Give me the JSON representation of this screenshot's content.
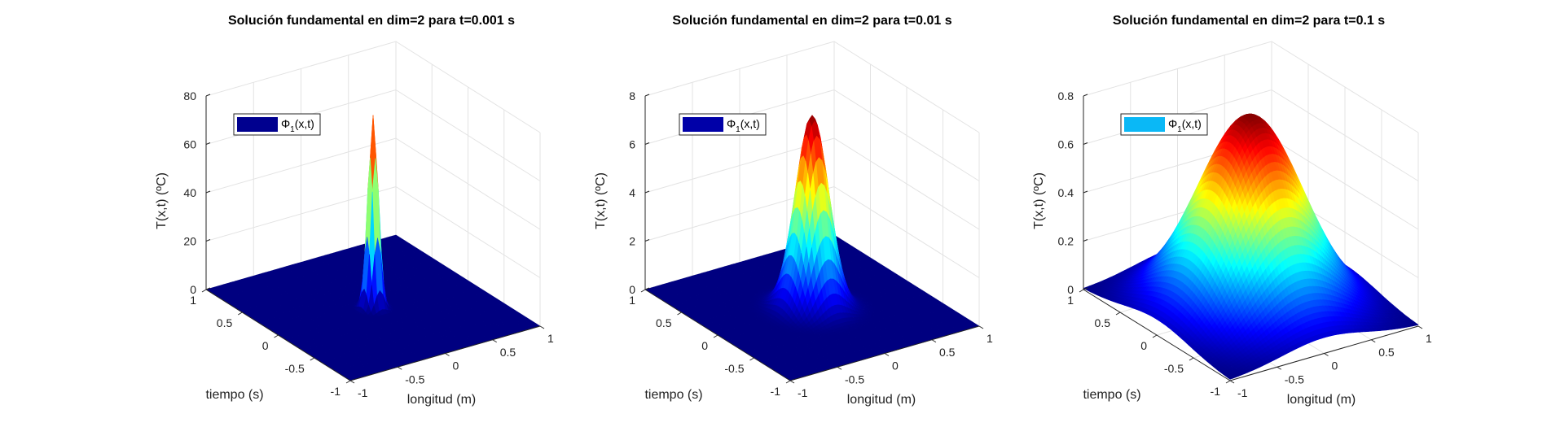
{
  "chart_data": [
    {
      "type": "surface",
      "title": "Solución fundamental en dim=2 para t=0.001 s",
      "xlabel": "longitud (m)",
      "ylabel": "tiempo (s)",
      "zlabel": "T(x,t) (ºC)",
      "xlim": [
        -1,
        1
      ],
      "ylim": [
        -1,
        1
      ],
      "zlim": [
        0,
        80
      ],
      "x_ticks": [
        "-1",
        "-0.5",
        "0",
        "0.5",
        "1"
      ],
      "y_ticks": [
        "-1",
        "-0.5",
        "0",
        "0.5",
        "1"
      ],
      "z_ticks": [
        "0",
        "20",
        "40",
        "60",
        "80"
      ],
      "t": 0.001,
      "peak": 79.6,
      "legend": {
        "label_main": "Φ",
        "label_sub": "1",
        "label_tail": "(x,t)",
        "swatch_color": "#00008f",
        "position": "top-left"
      },
      "colormap": "jet",
      "grid": true
    },
    {
      "type": "surface",
      "title": "Solución fundamental en dim=2 para t=0.01 s",
      "xlabel": "longitud (m)",
      "ylabel": "tiempo (s)",
      "zlabel": "T(x,t) (ºC)",
      "xlim": [
        -1,
        1
      ],
      "ylim": [
        -1,
        1
      ],
      "zlim": [
        0,
        8
      ],
      "x_ticks": [
        "-1",
        "-0.5",
        "0",
        "0.5",
        "1"
      ],
      "y_ticks": [
        "-1",
        "-0.5",
        "0",
        "0.5",
        "1"
      ],
      "z_ticks": [
        "0",
        "2",
        "4",
        "6",
        "8"
      ],
      "t": 0.01,
      "peak": 7.96,
      "legend": {
        "label_main": "Φ",
        "label_sub": "1",
        "label_tail": "(x,t)",
        "swatch_color": "#0000a8",
        "position": "top-left"
      },
      "colormap": "jet",
      "grid": true
    },
    {
      "type": "surface",
      "title": "Solución fundamental en dim=2 para t=0.1 s",
      "xlabel": "longitud (m)",
      "ylabel": "tiempo (s)",
      "zlabel": "T(x,t) (ºC)",
      "xlim": [
        -1,
        1
      ],
      "ylim": [
        -1,
        1
      ],
      "zlim": [
        0,
        0.8
      ],
      "x_ticks": [
        "-1",
        "-0.5",
        "0",
        "0.5",
        "1"
      ],
      "y_ticks": [
        "-1",
        "-0.5",
        "0",
        "0.5",
        "1"
      ],
      "z_ticks": [
        "0",
        "0.2",
        "0.4",
        "0.6",
        "0.8"
      ],
      "t": 0.1,
      "peak": 0.796,
      "legend": {
        "label_main": "Φ",
        "label_sub": "1",
        "label_tail": "(x,t)",
        "swatch_color": "#0ab8f6",
        "position": "top-left"
      },
      "colormap": "jet",
      "grid": true
    }
  ]
}
